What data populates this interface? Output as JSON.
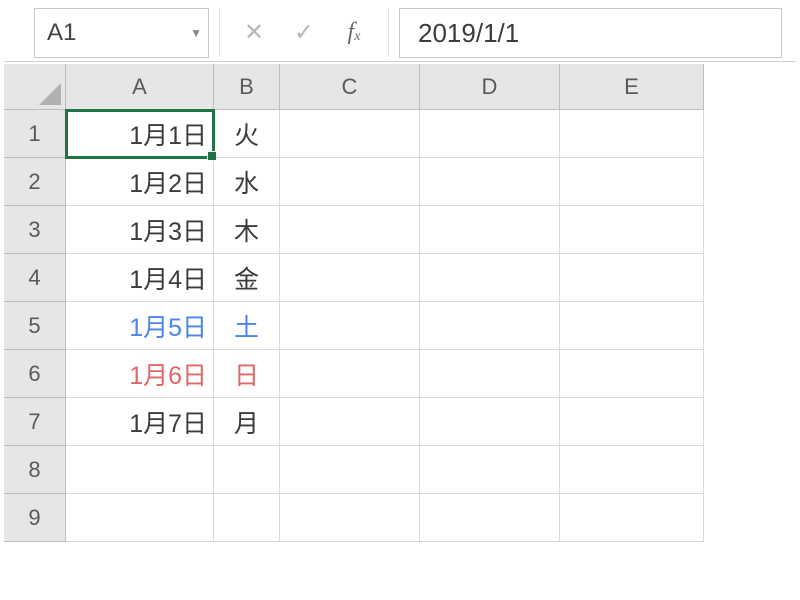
{
  "formula_bar": {
    "name_box": "A1",
    "formula_value": "2019/1/1"
  },
  "colors": {
    "default_text": "#3c3c3c",
    "saturday": "#4a86e8",
    "sunday": "#e06666",
    "selection": "#217346",
    "header_bg": "#e6e6e6",
    "grid_line": "#d9d9d9"
  },
  "columns": [
    "A",
    "B",
    "C",
    "D",
    "E"
  ],
  "visible_rows": 9,
  "selected_cell": "A1",
  "data": {
    "A": [
      "1月1日",
      "1月2日",
      "1月3日",
      "1月4日",
      "1月5日",
      "1月6日",
      "1月7日",
      "",
      ""
    ],
    "B": [
      "火",
      "水",
      "木",
      "金",
      "土",
      "日",
      "月",
      "",
      ""
    ]
  },
  "row_colors": [
    "#3c3c3c",
    "#3c3c3c",
    "#3c3c3c",
    "#3c3c3c",
    "#4a86e8",
    "#e06666",
    "#3c3c3c",
    "#3c3c3c",
    "#3c3c3c"
  ]
}
